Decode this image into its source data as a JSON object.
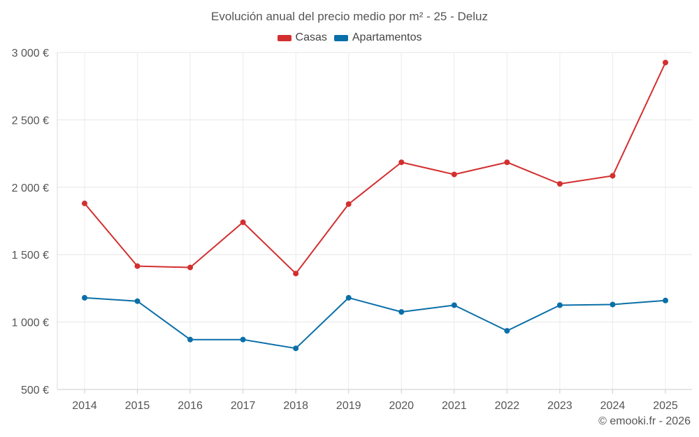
{
  "chart_data": {
    "type": "line",
    "title": "Evolución anual del precio medio por m² - 25 - Deluz",
    "xlabel": "",
    "ylabel": "",
    "categories": [
      "2014",
      "2015",
      "2016",
      "2017",
      "2018",
      "2019",
      "2020",
      "2021",
      "2022",
      "2023",
      "2024",
      "2025"
    ],
    "ylim": [
      500,
      3000
    ],
    "yticks": [
      500,
      1000,
      1500,
      2000,
      2500,
      3000
    ],
    "ytick_labels": [
      "500 €",
      "1 000 €",
      "1 500 €",
      "2 000 €",
      "2 500 €",
      "3 000 €"
    ],
    "grid": true,
    "legend_position": "top-center",
    "series": [
      {
        "name": "Casas",
        "color": "#d32f2f",
        "values": [
          1880,
          1415,
          1405,
          1740,
          1360,
          1875,
          2185,
          2095,
          2185,
          2025,
          2085,
          2925
        ]
      },
      {
        "name": "Apartamentos",
        "color": "#0a6fa8",
        "values": [
          1180,
          1155,
          870,
          870,
          805,
          1180,
          1075,
          1125,
          935,
          1125,
          1130,
          1160
        ]
      }
    ]
  },
  "credit": "© emooki.fr - 2026"
}
